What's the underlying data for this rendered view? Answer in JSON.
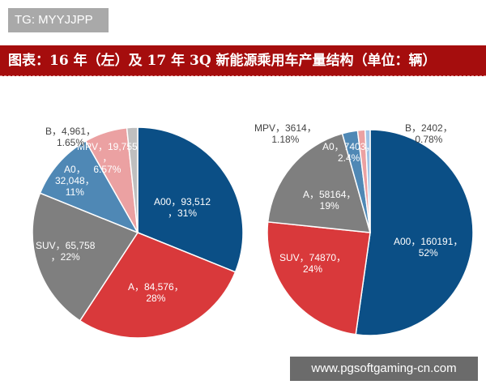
{
  "watermark_top": "TG: MYYJJPP",
  "watermark_bottom": "www.pgsoftgaming-cn.com",
  "chart_data": [
    {
      "type": "pie",
      "title": "图表：16 年（左）及 17 年 3Q 新能源乘用车产量结构（单位：辆）",
      "name": "2016",
      "slices": [
        {
          "label": "A00",
          "value": 93512,
          "pct": 31,
          "color": "#0b4f86",
          "text": "A00，93,512\n，31%"
        },
        {
          "label": "A",
          "value": 84576,
          "pct": 28,
          "color": "#d9393b",
          "text": "A，84,576，\n28%"
        },
        {
          "label": "SUV",
          "value": 65758,
          "pct": 22,
          "color": "#7f7f7f",
          "text": "SUV，65,758\n，22%"
        },
        {
          "label": "A0",
          "value": 32048,
          "pct": 11,
          "color": "#4f88b5",
          "text": "A0，\n32,048，\n11%"
        },
        {
          "label": "MPV",
          "value": 19755,
          "pct": 6.57,
          "color": "#eba1a2",
          "text": "MPV，19,755\n，\n6.57%"
        },
        {
          "label": "B",
          "value": 4961,
          "pct": 1.65,
          "color": "#bfbfbf",
          "text": "B，4,961，\n1.65%"
        }
      ]
    },
    {
      "type": "pie",
      "name": "2017 3Q",
      "slices": [
        {
          "label": "A00",
          "value": 160191,
          "pct": 52,
          "color": "#0b4f86",
          "text": "A00，160191，\n52%"
        },
        {
          "label": "SUV",
          "value": 74870,
          "pct": 24,
          "color": "#d9393b",
          "text": "SUV，74870，\n24%"
        },
        {
          "label": "A",
          "value": 58164,
          "pct": 19,
          "color": "#7f7f7f",
          "text": "A，58164，\n19%"
        },
        {
          "label": "A0",
          "value": 7403,
          "pct": 2.4,
          "color": "#4f88b5",
          "text": "A0，7403，\n2.4%"
        },
        {
          "label": "MPV",
          "value": 3614,
          "pct": 1.18,
          "color": "#eba1a2",
          "text": "MPV，3614，\n1.18%"
        },
        {
          "label": "B",
          "value": 2402,
          "pct": 0.78,
          "color": "#9dc3e6",
          "text": "B，2402，\n0.78%"
        }
      ]
    }
  ]
}
